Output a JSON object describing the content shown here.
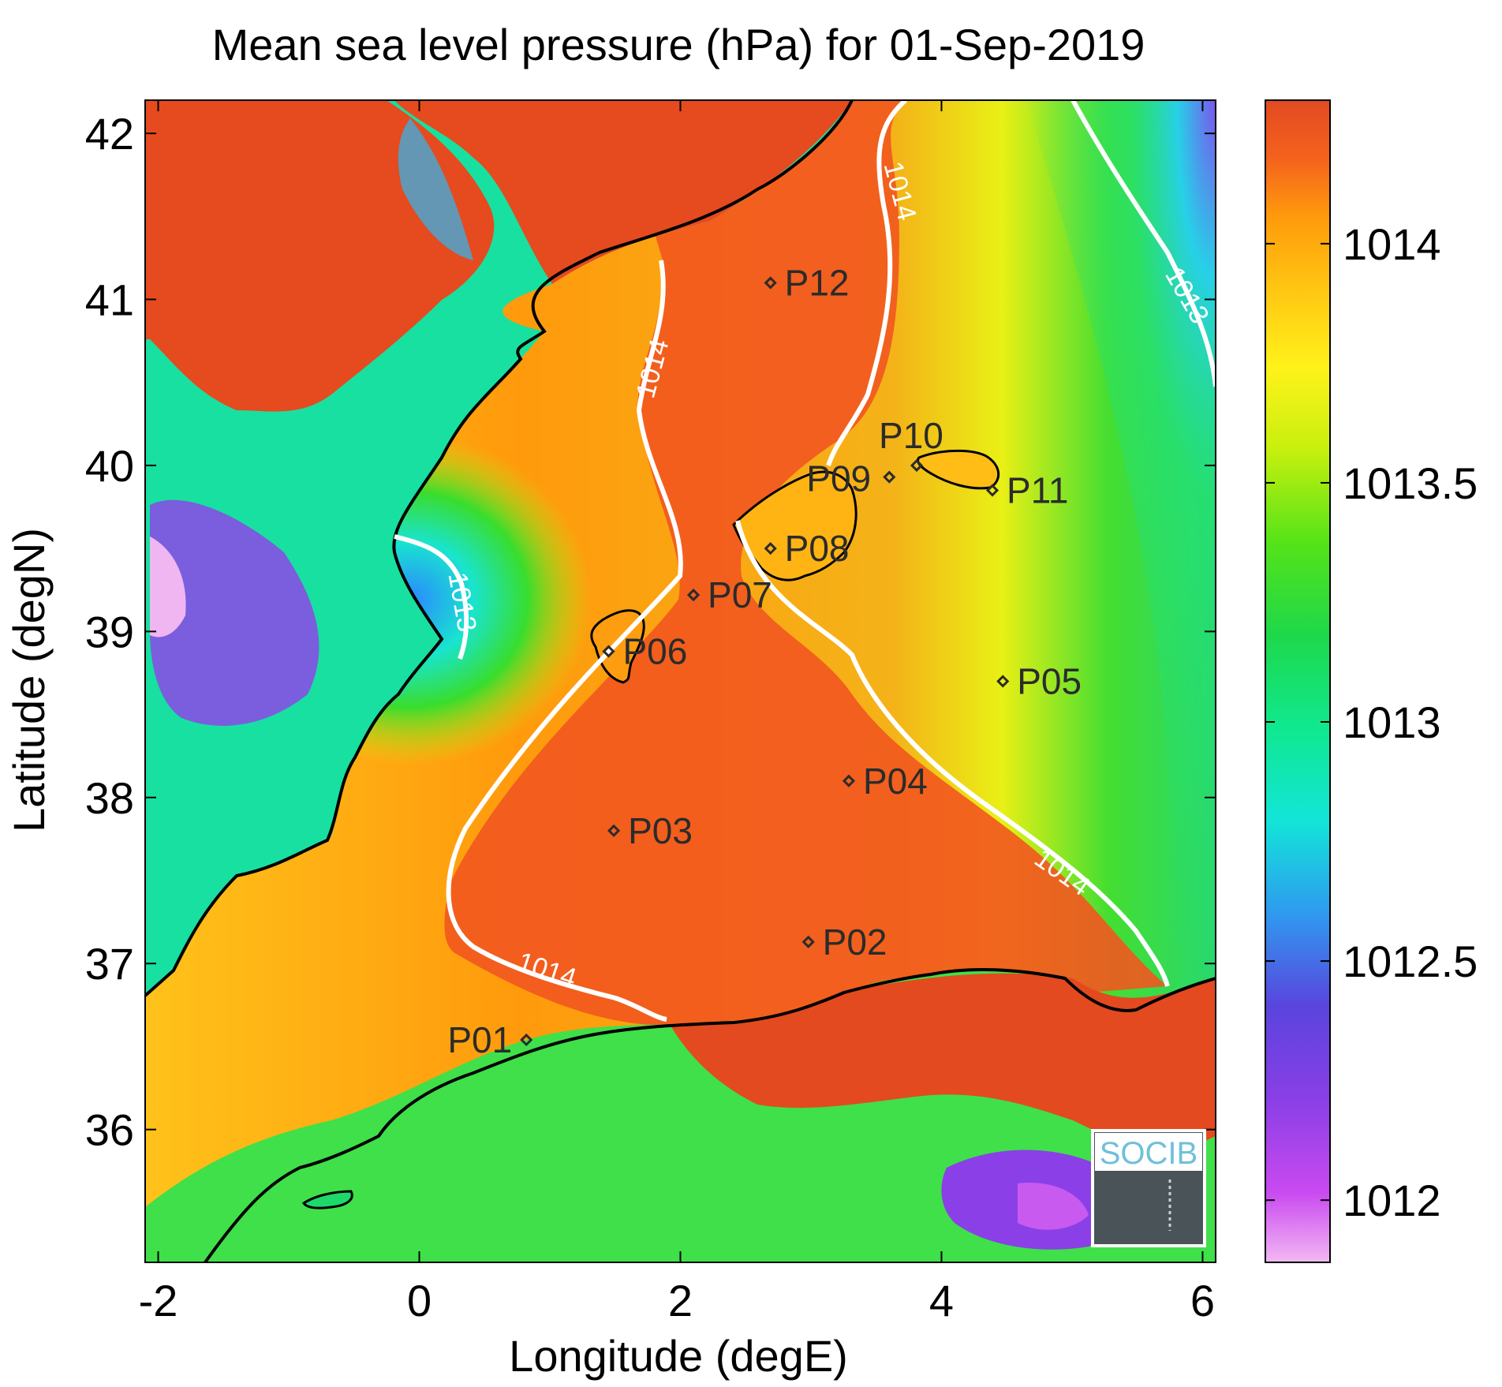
{
  "title": "Mean sea level pressure (hPa) for 01-Sep-2019",
  "xlabel": "Longitude (degE)",
  "ylabel": "Latitude (degN)",
  "logo_text": "SOCIB",
  "map": {
    "xlim": [
      -2.1,
      6.1
    ],
    "ylim": [
      35.2,
      42.2
    ],
    "x_ticks": [
      "-2",
      "0",
      "2",
      "4",
      "6"
    ],
    "x_tick_values": [
      -2,
      0,
      2,
      4,
      6
    ],
    "y_ticks": [
      "36",
      "37",
      "38",
      "39",
      "40",
      "41",
      "42"
    ],
    "y_tick_values": [
      36,
      37,
      38,
      39,
      40,
      41,
      42
    ]
  },
  "colorbar": {
    "range": [
      1011.87,
      1014.3
    ],
    "ticks": [
      "1012",
      "1012.5",
      "1013",
      "1013.5",
      "1014"
    ],
    "tick_values": [
      1012,
      1012.5,
      1013,
      1013.5,
      1014
    ],
    "colors": [
      "#f3b8f3",
      "#c94af0",
      "#8a3fe6",
      "#5a44dd",
      "#2f9af0",
      "#12e5d8",
      "#10e88f",
      "#1ed84a",
      "#56e318",
      "#c8f00e",
      "#fff21a",
      "#ffc412",
      "#ff9a0c",
      "#f4621d",
      "#e24a22"
    ]
  },
  "contour_labels": [
    "1014",
    "1014",
    "1014",
    "1014",
    "1013",
    "1013"
  ],
  "stations": [
    {
      "name": "P01",
      "lon": 0.82,
      "lat": 36.54
    },
    {
      "name": "P02",
      "lon": 2.98,
      "lat": 37.13
    },
    {
      "name": "P03",
      "lon": 1.49,
      "lat": 37.8
    },
    {
      "name": "P04",
      "lon": 3.29,
      "lat": 38.1
    },
    {
      "name": "P05",
      "lon": 4.47,
      "lat": 38.7
    },
    {
      "name": "P06",
      "lon": 1.45,
      "lat": 38.88
    },
    {
      "name": "P07",
      "lon": 2.1,
      "lat": 39.22
    },
    {
      "name": "P08",
      "lon": 2.69,
      "lat": 39.5
    },
    {
      "name": "P09",
      "lon": 3.6,
      "lat": 39.93
    },
    {
      "name": "P10",
      "lon": 3.81,
      "lat": 40.0
    },
    {
      "name": "P11",
      "lon": 4.39,
      "lat": 39.85
    },
    {
      "name": "P12",
      "lon": 2.69,
      "lat": 41.1
    }
  ]
}
